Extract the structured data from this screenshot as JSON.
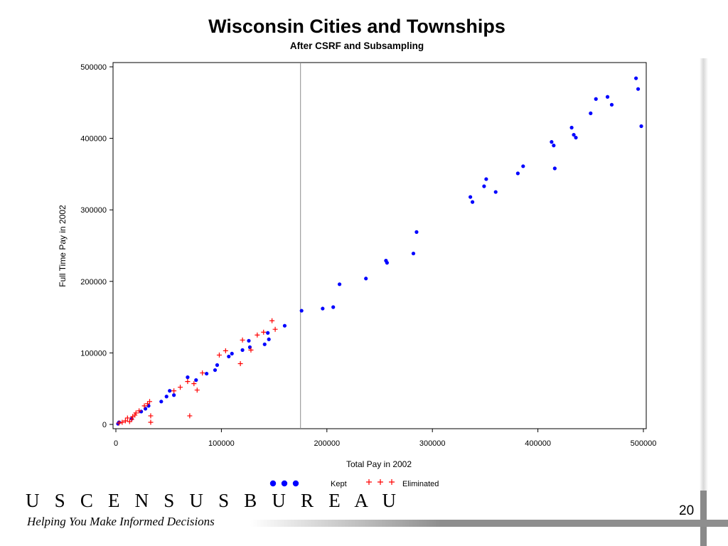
{
  "slide": {
    "footer_logo": "U S C E N S U S B U R E A U",
    "tagline": "Helping You Make Informed Decisions",
    "page_number": "20"
  },
  "chart_data": {
    "type": "scatter",
    "title": "Wisconsin Cities and Townships",
    "subtitle": "After CSRF and Subsampling",
    "xlabel": "Total Pay in 2002",
    "ylabel": "Full Time Pay in 2002",
    "xlim": [
      0,
      500000
    ],
    "ylim": [
      0,
      500000
    ],
    "xticks": [
      0,
      100000,
      200000,
      300000,
      400000,
      500000
    ],
    "yticks": [
      0,
      100000,
      200000,
      300000,
      400000,
      500000
    ],
    "xtick_labels": [
      "0",
      "100000",
      "200000",
      "300000",
      "400000",
      "500000"
    ],
    "ytick_labels": [
      "0",
      "100000",
      "200000",
      "300000",
      "400000",
      "500000"
    ],
    "reference_line_x": 175000,
    "legend_position": "bottom",
    "series": [
      {
        "name": "Kept",
        "marker": "dot",
        "color": "#0000ff",
        "x": [
          2000,
          3000,
          15000,
          24000,
          28000,
          31000,
          43000,
          48000,
          51000,
          55000,
          68000,
          76000,
          86000,
          94000,
          96000,
          107000,
          110000,
          120000,
          126000,
          127000,
          141000,
          144000,
          145000,
          160000,
          176000,
          196000,
          206000,
          212000,
          237000,
          256000,
          257000,
          282000,
          285000,
          336000,
          338000,
          349000,
          351000,
          360000,
          381000,
          386000,
          413000,
          415000,
          416000,
          432000,
          434000,
          436000,
          450000,
          455000,
          466000,
          470000,
          493000,
          495000,
          498000
        ],
        "y": [
          1000,
          3000,
          8000,
          18000,
          22000,
          26000,
          32000,
          39000,
          47000,
          41000,
          66000,
          62000,
          71000,
          76000,
          83000,
          95000,
          99000,
          104000,
          117000,
          108000,
          112000,
          128000,
          119000,
          138000,
          159000,
          162000,
          164000,
          196000,
          204000,
          229000,
          226000,
          239000,
          269000,
          318000,
          311000,
          333000,
          343000,
          325000,
          351000,
          361000,
          395000,
          390000,
          358000,
          415000,
          405000,
          401000,
          435000,
          455000,
          458000,
          447000,
          484000,
          469000,
          417000
        ]
      },
      {
        "name": "Eliminated",
        "marker": "plus",
        "color": "#ff0000",
        "x": [
          3000,
          6000,
          9000,
          11000,
          13000,
          15000,
          16000,
          18000,
          19000,
          22000,
          27000,
          30000,
          32000,
          33000,
          33000,
          55000,
          61000,
          68000,
          70000,
          74000,
          77000,
          82000,
          98000,
          104000,
          118000,
          120000,
          128000,
          134000,
          140000,
          148000,
          151000
        ],
        "y": [
          2000,
          3000,
          5000,
          9000,
          4000,
          7000,
          11000,
          13000,
          16000,
          19000,
          26000,
          29000,
          32000,
          3000,
          12000,
          47000,
          52000,
          60000,
          12000,
          57000,
          48000,
          72000,
          97000,
          103000,
          85000,
          118000,
          104000,
          125000,
          129000,
          145000,
          133000
        ]
      }
    ]
  }
}
